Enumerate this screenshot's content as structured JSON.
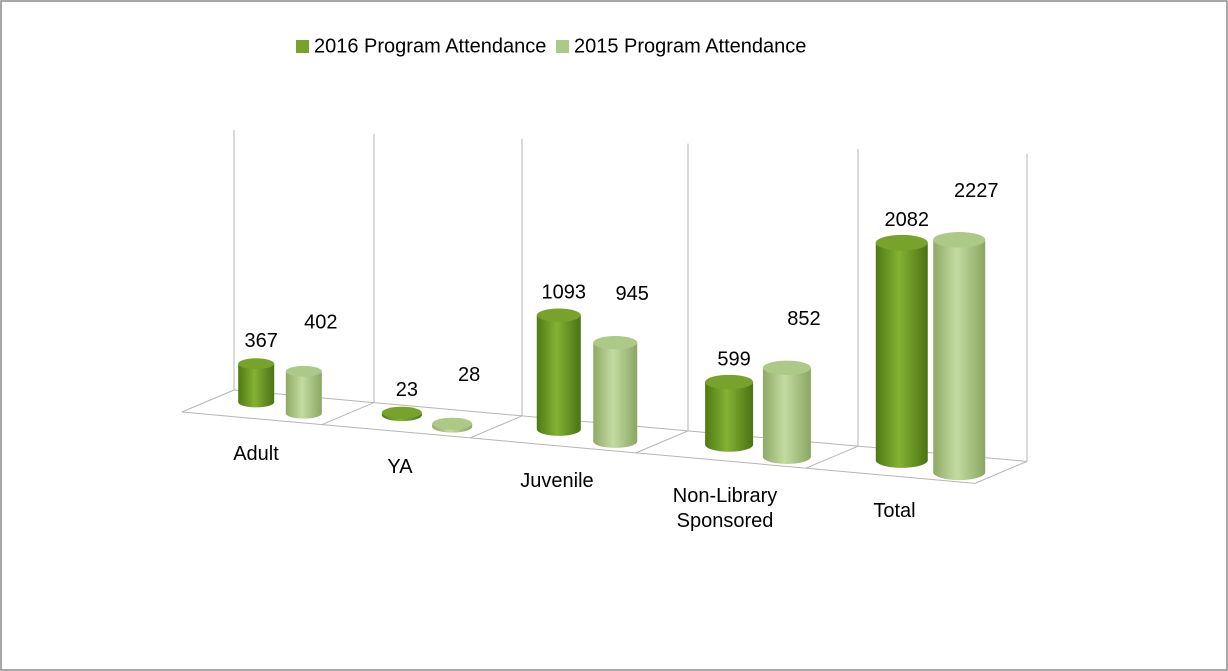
{
  "chart_data": {
    "type": "bar3d",
    "categories": [
      "Adult",
      "YA",
      "Juvenile",
      "Non-Library Sponsored",
      "Total"
    ],
    "series": [
      {
        "name": "2016 Program Attendance",
        "color": "#77a22b",
        "values": [
          367,
          23,
          1093,
          599,
          2082
        ]
      },
      {
        "name": "2015 Program Attendance",
        "color": "#adc987",
        "values": [
          402,
          28,
          945,
          852,
          2227
        ]
      }
    ],
    "legend": "top"
  }
}
